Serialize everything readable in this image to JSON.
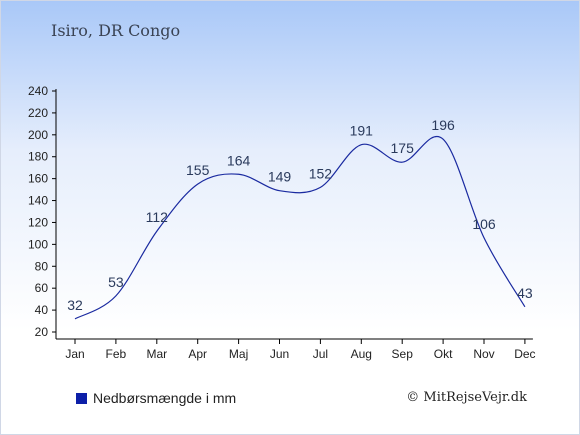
{
  "header": {
    "location": "Isiro, DR Congo"
  },
  "legend": {
    "label": "Nedbørsmængde i mm",
    "color": "#0d1fa8"
  },
  "footer": {
    "copyright": "© MitRejseVejr.dk"
  },
  "colors": {
    "line": "#1a2aa0",
    "axis": "#000000"
  },
  "chart_data": {
    "type": "line",
    "title": "",
    "xlabel": "",
    "ylabel": "",
    "categories": [
      "Jan",
      "Feb",
      "Mar",
      "Apr",
      "Maj",
      "Jun",
      "Jul",
      "Aug",
      "Sep",
      "Okt",
      "Nov",
      "Dec"
    ],
    "series": [
      {
        "values": [
          32,
          53,
          112,
          155,
          164,
          149,
          152,
          191,
          175,
          196,
          106,
          43
        ]
      }
    ],
    "data_labels": [
      "32",
      "53",
      "112",
      "155",
      "164",
      "149",
      "152",
      "191",
      "175",
      "196",
      "106",
      "43"
    ],
    "ylim": [
      20,
      240
    ],
    "yticks": [
      20,
      40,
      60,
      80,
      100,
      120,
      140,
      160,
      180,
      200,
      220,
      240
    ],
    "grid": false,
    "legend_position": "bottom-left"
  }
}
